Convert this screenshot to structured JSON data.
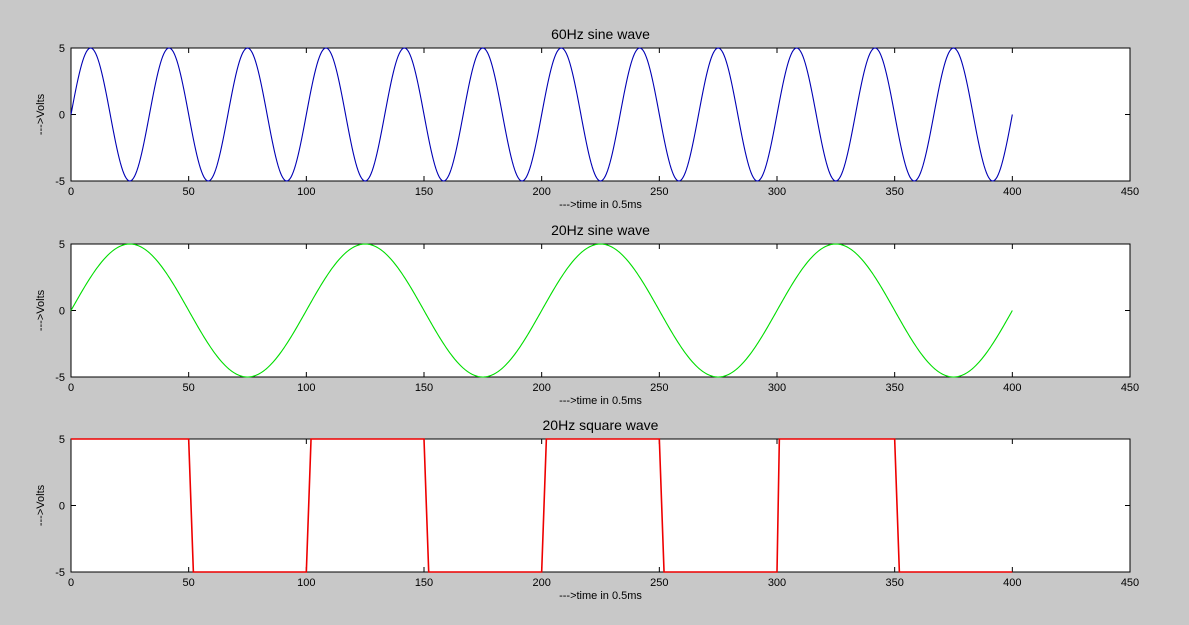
{
  "chart_data": [
    {
      "type": "line",
      "title": "60Hz sine wave",
      "xlabel": "--->time in 0.5ms",
      "ylabel": "--->Volts",
      "xlim": [
        0,
        450
      ],
      "ylim": [
        -5,
        5
      ],
      "xticks": [
        0,
        50,
        100,
        150,
        200,
        250,
        300,
        350,
        400,
        450
      ],
      "yticks": [
        -5,
        0,
        5
      ],
      "grid": false,
      "series": [
        {
          "color": "#0000b4",
          "function": "sine",
          "amplitude": 5,
          "cycles_per_100_samples": 3,
          "x_range": [
            0,
            400
          ]
        }
      ]
    },
    {
      "type": "line",
      "title": "20Hz sine wave",
      "xlabel": "--->time in 0.5ms",
      "ylabel": "--->Volts",
      "xlim": [
        0,
        450
      ],
      "ylim": [
        -5,
        5
      ],
      "xticks": [
        0,
        50,
        100,
        150,
        200,
        250,
        300,
        350,
        400,
        450
      ],
      "yticks": [
        -5,
        0,
        5
      ],
      "grid": false,
      "series": [
        {
          "color": "#00dd00",
          "function": "sine",
          "amplitude": 5,
          "cycles_per_100_samples": 1,
          "x_range": [
            0,
            400
          ]
        }
      ]
    },
    {
      "type": "line",
      "title": "20Hz square wave",
      "xlabel": "--->time in 0.5ms",
      "ylabel": "--->Volts",
      "xlim": [
        0,
        450
      ],
      "ylim": [
        -5,
        5
      ],
      "xticks": [
        0,
        50,
        100,
        150,
        200,
        250,
        300,
        350,
        400,
        450
      ],
      "yticks": [
        -5,
        0,
        5
      ],
      "grid": false,
      "series": [
        {
          "color": "#ee0000",
          "function": "square",
          "x": [
            0,
            50,
            51,
            52,
            100,
            101,
            102,
            150,
            151,
            152,
            200,
            201,
            202,
            250,
            251,
            252,
            300,
            301,
            350,
            351,
            352,
            400
          ],
          "y": [
            5,
            5,
            0,
            -5,
            -5,
            0,
            5,
            5,
            0,
            -5,
            -5,
            0,
            5,
            5,
            0,
            -5,
            -5,
            5,
            5,
            0,
            -5,
            -5
          ]
        }
      ]
    }
  ]
}
